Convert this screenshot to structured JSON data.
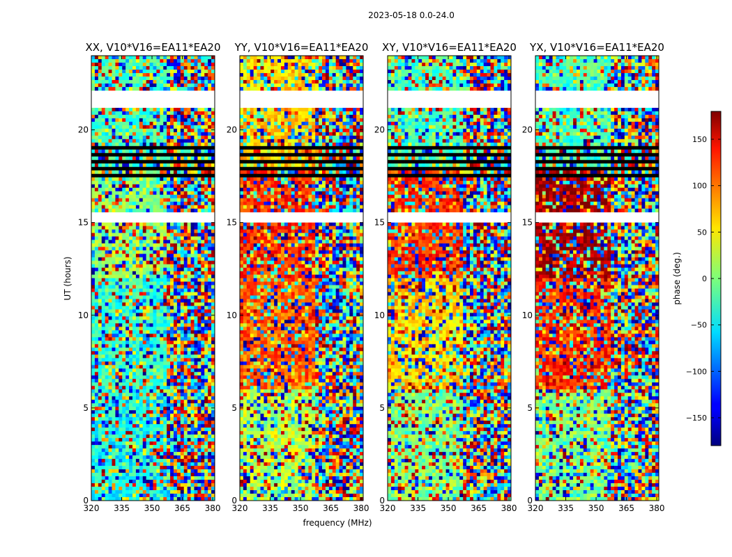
{
  "figure": {
    "suptitle": "2023-05-18 0.0-24.0"
  },
  "chart_data": {
    "type": "heatmap",
    "title": "2023-05-18 0.0-24.0",
    "xlabel": "frequency (MHz)",
    "ylabel": "UT (hours)",
    "xlim": [
      320,
      381
    ],
    "ylim": [
      0,
      24
    ],
    "x_ticks": [
      320,
      335,
      350,
      365,
      380
    ],
    "y_ticks": [
      0,
      5,
      10,
      15,
      20
    ],
    "colorbar": {
      "label": "phase (deg.)",
      "range": [
        -180,
        180
      ],
      "ticks": [
        -150,
        -100,
        -50,
        0,
        50,
        100,
        150
      ],
      "tick_labels": [
        "−150",
        "−100",
        "−50",
        "0",
        "50",
        "100",
        "150"
      ],
      "colormap": "jet"
    },
    "panels": [
      {
        "name": "xx",
        "title": "XX, V10*V16=EA11*EA20",
        "mean_phase": [
          -40,
          -30,
          5,
          -20
        ]
      },
      {
        "name": "yy",
        "title": "YY, V10*V16=EA11*EA20",
        "mean_phase": [
          20,
          100,
          120,
          60
        ]
      },
      {
        "name": "xy",
        "title": "XY, V10*V16=EA11*EA20",
        "mean_phase": [
          0,
          60,
          120,
          -20
        ]
      },
      {
        "name": "yx",
        "title": "YX, V10*V16=EA11*EA20",
        "mean_phase": [
          0,
          120,
          170,
          -20
        ]
      }
    ],
    "blank_time_ranges": [
      [
        21.2,
        22.1
      ],
      [
        15.0,
        15.6
      ],
      [
        24.0,
        24.0
      ]
    ],
    "flagged_time_ranges": [
      [
        17.5,
        19.2
      ]
    ]
  }
}
